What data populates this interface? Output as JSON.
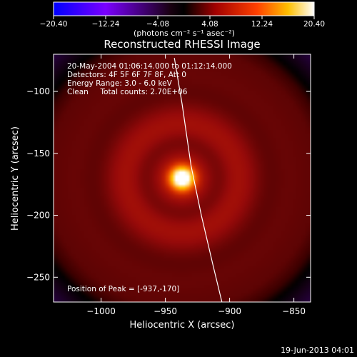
{
  "chart_data": {
    "type": "heatmap",
    "title": "Reconstructed RHESSI Image",
    "xlabel": "Heliocentric X (arcsec)",
    "ylabel": "Heliocentric Y (arcsec)",
    "xlim": [
      -1037,
      -837
    ],
    "ylim": [
      -270,
      -70
    ],
    "x_ticks": [
      -1000,
      -950,
      -900,
      -850
    ],
    "x_tick_labels": [
      "−1000",
      "−950",
      "−900",
      "−850"
    ],
    "y_ticks": [
      -100,
      -150,
      -200,
      -250
    ],
    "y_tick_labels": [
      "−100",
      "−150",
      "−200",
      "−250"
    ],
    "colorbar": {
      "min": -20.4,
      "max": 20.4,
      "tick_values": [
        -20.4,
        -12.24,
        -4.08,
        4.08,
        12.24,
        20.4
      ],
      "tick_labels": [
        "−20.40",
        "−12.24",
        "−4.08",
        "4.08",
        "12.24",
        "20.40"
      ],
      "units": "(photons cm⁻² s⁻¹ asec⁻²)",
      "colors": [
        "#0000ff",
        "#8000ff",
        "#000000",
        "#900000",
        "#ff5000",
        "#ffc000",
        "#ffffff"
      ]
    },
    "source_peak": {
      "x": -937,
      "y": -170,
      "sigma": 7
    },
    "ring_radius": 45,
    "annotations": [
      "20-May-2004 01:06:14.000 to 01:12:14.000",
      "Detectors: 4F 5F 6F 7F 8F, Att 0",
      "Energy Range: 3.0 - 6.0 keV",
      "Clean     Total counts: 2.70E+06"
    ],
    "peak_label": "Position of Peak = [-937,-170]",
    "limb_line": [
      [
        -943,
        -73
      ],
      [
        -937,
        -110
      ],
      [
        -930,
        -160
      ],
      [
        -922,
        -200
      ],
      [
        -913,
        -240
      ],
      [
        -906,
        -270
      ]
    ]
  },
  "footer_timestamp": "19-Jun-2013 04:01"
}
